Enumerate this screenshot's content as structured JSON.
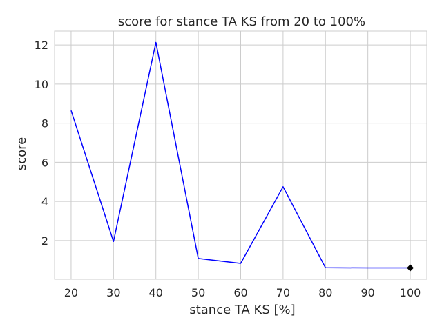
{
  "chart_data": {
    "type": "line",
    "title": "score for stance TA KS from 20 to 100%",
    "xlabel": "stance TA KS [%]",
    "ylabel": "score",
    "x": [
      20,
      30,
      40,
      50,
      60,
      70,
      80,
      90,
      100
    ],
    "series": [
      {
        "values": [
          8.65,
          1.95,
          12.13,
          1.08,
          0.83,
          4.75,
          0.61,
          0.6,
          0.6
        ],
        "color": "#0000ff"
      }
    ],
    "highlight": {
      "x": 100,
      "y": 0.6,
      "marker": "diamond",
      "color": "#000000"
    },
    "x_ticks": [
      20,
      30,
      40,
      50,
      60,
      70,
      80,
      90,
      100
    ],
    "y_ticks": [
      2,
      4,
      6,
      8,
      10,
      12
    ],
    "xlim": [
      16.1,
      103.9
    ],
    "ylim": [
      0.02,
      12.71
    ],
    "grid": true
  }
}
